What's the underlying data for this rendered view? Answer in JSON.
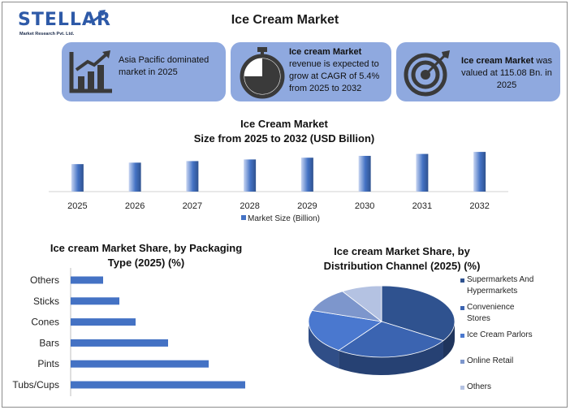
{
  "logo": {
    "name": "STELLAR",
    "tagline": "Market Research Pvt. Ltd."
  },
  "title": "Ice Cream Market",
  "cards": [
    {
      "icon": "bar-chart-growth-icon",
      "text": "Asia Pacific dominated market in 2025"
    },
    {
      "icon": "stopwatch-icon",
      "bold": "Ice cream Market",
      "text": "revenue is expected to grow at CAGR of 5.4% from 2025 to 2032"
    },
    {
      "icon": "target-icon",
      "bold": "Ice cream Market",
      "text_a": "was",
      "text_b": "valued at 115.08 Bn. in 2025"
    }
  ],
  "colors": {
    "card_bg": "#8fa9df",
    "bar_blue": "#4472c4",
    "dark_blue": "#2f528f"
  },
  "chart_data": [
    {
      "type": "bar",
      "title": "Ice Cream Market",
      "subtitle": "Size from 2025 to 2032 (USD Billion)",
      "categories": [
        "2025",
        "2026",
        "2027",
        "2028",
        "2029",
        "2030",
        "2031",
        "2032"
      ],
      "series": [
        {
          "name": "Market Size (Billion)",
          "values": [
            115.08,
            121.3,
            127.8,
            134.7,
            142.0,
            149.7,
            157.8,
            166.3
          ]
        }
      ],
      "ylim": [
        0,
        170
      ],
      "legend": "bottom"
    },
    {
      "type": "bar",
      "orientation": "horizontal",
      "title": "Ice cream Market Share, by Packaging",
      "subtitle": "Type (2025) (%)",
      "categories": [
        "Others",
        "Sticks",
        "Cones",
        "Bars",
        "Pints",
        "Tubs/Cups"
      ],
      "values": [
        8,
        12,
        16,
        24,
        34,
        43
      ],
      "xlim": [
        0,
        45
      ]
    },
    {
      "type": "pie",
      "title": "Ice cream Market Share, by",
      "subtitle": "Distribution Channel (2025) (%)",
      "categories": [
        "Supermarkets And Hypermarkets",
        "Convenience Stores",
        "Ice Cream Parlors",
        "Online Retail",
        "Others"
      ],
      "values": [
        34,
        26,
        20,
        11,
        9
      ],
      "legend_lines": [
        [
          "Supermarkets And",
          "Hypermarkets"
        ],
        [
          "Convenience",
          "Stores"
        ],
        [
          "Ice Cream Parlors"
        ],
        [
          "Online Retail"
        ],
        [
          "Others"
        ]
      ],
      "colors": [
        "#2f528f",
        "#3b64b1",
        "#4a78cf",
        "#7d96cc",
        "#b4c2e2"
      ],
      "legend": "right"
    }
  ]
}
